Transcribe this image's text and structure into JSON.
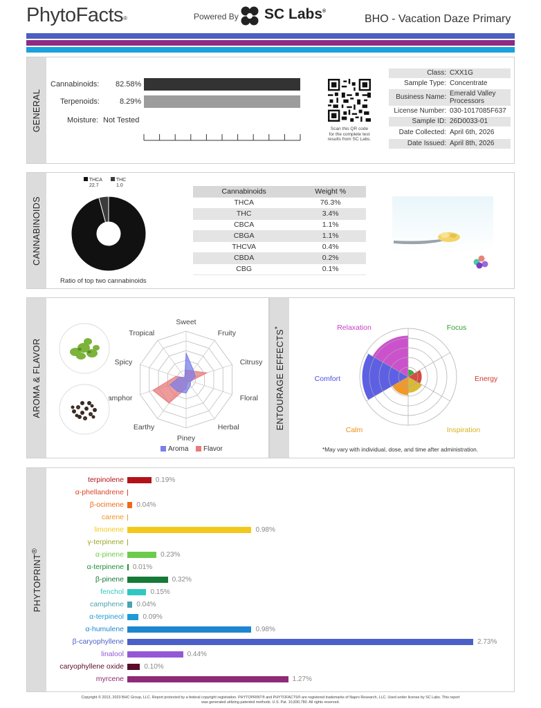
{
  "header": {
    "brand": "PhytoFacts",
    "brand_mark": "®",
    "powered_by": "Powered By",
    "lab_name": "SC Labs",
    "lab_mark": "®",
    "report_title": "BHO - Vacation Daze Primary"
  },
  "colors": {
    "stripe1": "#4a5fc1",
    "stripe2": "#8e2a83",
    "stripe3": "#19a2dc"
  },
  "general": {
    "section_label": "GENERAL",
    "cannabinoids_label": "Cannabinoids:",
    "cannabinoids_value": "82.58%",
    "cannabinoids_fraction": 0.8258,
    "terpenoids_label": "Terpenoids:",
    "terpenoids_value": "8.29%",
    "moisture_label": "Moisture:",
    "moisture_value": "Not Tested",
    "qr_caption_1": "Scan this QR code",
    "qr_caption_2": "for the complete test",
    "qr_caption_3": "results from SC Labs.",
    "info": [
      {
        "key": "Class:",
        "value": "CXX1G"
      },
      {
        "key": "Sample Type:",
        "value": "Concentrate"
      },
      {
        "key": "Business Name:",
        "value": "Emerald Valley Processors"
      },
      {
        "key": "License Number:",
        "value": "030-1017085F637"
      },
      {
        "key": "Sample ID:",
        "value": "26D0033-01"
      },
      {
        "key": "Date Collected:",
        "value": "April 6th, 2026"
      },
      {
        "key": "Date Issued:",
        "value": "April 8th, 2026"
      }
    ]
  },
  "cannabinoids": {
    "section_label": "CANNABINOIDS",
    "legend": [
      {
        "name": "THCA",
        "value": "22.7",
        "color": "#111111"
      },
      {
        "name": "THC",
        "value": "1.0",
        "color": "#3b3b3b"
      }
    ],
    "donut_caption": "Ratio of top two cannabinoids",
    "table_headers": [
      "Cannabinoids",
      "Weight %"
    ],
    "rows": [
      {
        "name": "THCA",
        "weight": "76.3%"
      },
      {
        "name": "THC",
        "weight": "3.4%"
      },
      {
        "name": "CBCA",
        "weight": "1.1%"
      },
      {
        "name": "CBGA",
        "weight": "1.1%"
      },
      {
        "name": "THCVA",
        "weight": "0.4%"
      },
      {
        "name": "CBDA",
        "weight": "0.2%"
      },
      {
        "name": "CBG",
        "weight": "0.1%"
      }
    ]
  },
  "aroma": {
    "section_label": "AROMA & FLAVOR",
    "axes": [
      "Sweet",
      "Fruity",
      "Citrusy",
      "Floral",
      "Herbal",
      "Piney",
      "Earthy",
      "Camphor",
      "Spicy",
      "Tropical"
    ],
    "aroma_label": "Aroma",
    "flavor_label": "Flavor",
    "aroma_color": "#7b7fe8",
    "flavor_color": "#e77a7a",
    "aroma_values": [
      0.55,
      0.25,
      0.2,
      0.1,
      0.15,
      0.28,
      0.3,
      0.35,
      0.15,
      0.05
    ],
    "flavor_values": [
      0.2,
      0.22,
      0.45,
      0.1,
      0.05,
      0.18,
      0.6,
      0.72,
      0.22,
      0.05
    ]
  },
  "effects": {
    "section_label": "ENTOURAGE EFFECTS",
    "section_mark": "*",
    "labels": [
      {
        "name": "Relaxation",
        "color": "#c63fc8"
      },
      {
        "name": "Focus",
        "color": "#2f9e2f"
      },
      {
        "name": "Energy",
        "color": "#d2392b"
      },
      {
        "name": "Inspiration",
        "color": "#d6b21e"
      },
      {
        "name": "Calm",
        "color": "#ef8d12"
      },
      {
        "name": "Comfort",
        "color": "#4b4fe0"
      }
    ],
    "levels": [
      0.85,
      0.15,
      0.28,
      0.33,
      0.38,
      0.95
    ],
    "footnote": "*May vary with individual, dose, and time after administration."
  },
  "phytoprint": {
    "section_label": "PHYTOPRINT",
    "section_mark": "®",
    "max_percent": 2.73,
    "terpenes": [
      {
        "name": "terpinolene",
        "value": 0.19,
        "label": "0.19%",
        "color": "#b3121a"
      },
      {
        "name": "α-phellandrene",
        "value": 0.001,
        "label": "",
        "color": "#d9432a"
      },
      {
        "name": "β-ocimene",
        "value": 0.04,
        "label": "0.04%",
        "color": "#ee6a17"
      },
      {
        "name": "carene",
        "value": 0.001,
        "label": "",
        "color": "#f2951c"
      },
      {
        "name": "limonene",
        "value": 0.98,
        "label": "0.98%",
        "color": "#f3c81c"
      },
      {
        "name": "γ-terpinene",
        "value": 0.001,
        "label": "",
        "color": "#9ca82a"
      },
      {
        "name": "α-pinene",
        "value": 0.23,
        "label": "0.23%",
        "color": "#6dcb4b"
      },
      {
        "name": "α-terpinene",
        "value": 0.01,
        "label": "0.01%",
        "color": "#1d8f3a"
      },
      {
        "name": "β-pinene",
        "value": 0.32,
        "label": "0.32%",
        "color": "#157a38"
      },
      {
        "name": "fenchol",
        "value": 0.15,
        "label": "0.15%",
        "color": "#2fc7c2"
      },
      {
        "name": "camphene",
        "value": 0.04,
        "label": "0.04%",
        "color": "#4aa3b0"
      },
      {
        "name": "α-terpineol",
        "value": 0.09,
        "label": "0.09%",
        "color": "#1e9bd6"
      },
      {
        "name": "α-humulene",
        "value": 0.98,
        "label": "0.98%",
        "color": "#1e86d0"
      },
      {
        "name": "β-caryophyllene",
        "value": 2.73,
        "label": "2.73%",
        "color": "#4a5fc8"
      },
      {
        "name": "linalool",
        "value": 0.44,
        "label": "0.44%",
        "color": "#9457d6"
      },
      {
        "name": "caryophyllene oxide",
        "value": 0.1,
        "label": "0.10%",
        "color": "#5a0c2a"
      },
      {
        "name": "myrcene",
        "value": 1.27,
        "label": "1.27%",
        "color": "#8e2a76"
      }
    ]
  },
  "footer": {
    "line1": "Copyright © 2013, 2023 BHC Group, LLC. Report protected by a federal copyright registration. PHYTOPRINT® and PHYTOFACTS® are registered trademarks of Napro Research, LLC. Used under license by SC Labs. This report",
    "line2": "was generated utilizing patented methods. U.S. Pat. 10,830,780. All rights reserved."
  }
}
